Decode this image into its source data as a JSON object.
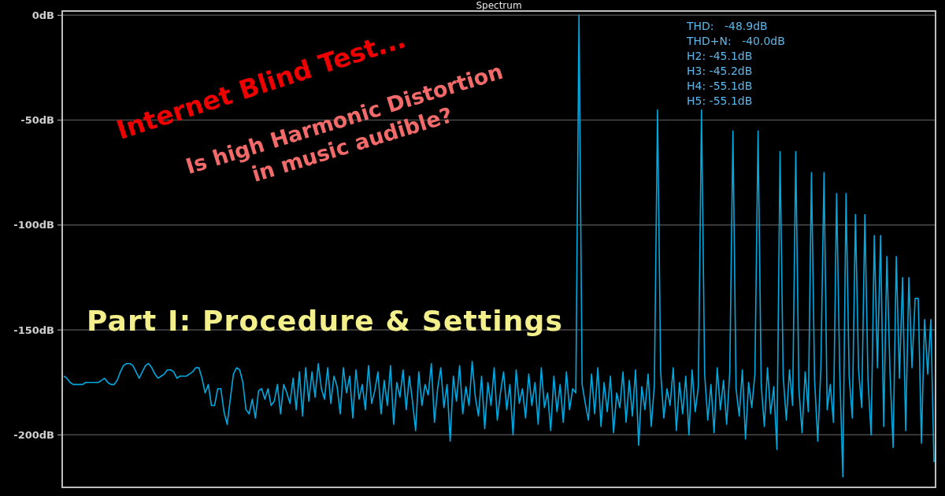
{
  "chart_data": {
    "type": "line",
    "title": "Spectrum",
    "categories": [
      null,
      null,
      null,
      null,
      null,
      null,
      null,
      null,
      null,
      null,
      null,
      null,
      null,
      null,
      null,
      null,
      null,
      null,
      null,
      null,
      null,
      null,
      null,
      null,
      null,
      null,
      null,
      null,
      null,
      null,
      null,
      null,
      null,
      null,
      null,
      null,
      null,
      null,
      null,
      null,
      null,
      null,
      null,
      null,
      null,
      null,
      null,
      null,
      null,
      null,
      null,
      null,
      null,
      null,
      null,
      null,
      null,
      null,
      null,
      null,
      null,
      null,
      null,
      null,
      null,
      null,
      null,
      null,
      null,
      null,
      null,
      null,
      null,
      null,
      null,
      null,
      null,
      null,
      null,
      null,
      null,
      null,
      null,
      null,
      null,
      null,
      null,
      null,
      null,
      null,
      null,
      null,
      null,
      null,
      null,
      null,
      null,
      null,
      null,
      null,
      null,
      null,
      null,
      null,
      null,
      null,
      null,
      null,
      null,
      null,
      null,
      null,
      null,
      null,
      null,
      null,
      null,
      null,
      null,
      null,
      null,
      null,
      null,
      null,
      null,
      null,
      null,
      null,
      null,
      null,
      null,
      null,
      null,
      null,
      null,
      null,
      null,
      null,
      null,
      null,
      null,
      null,
      null,
      null,
      null,
      null,
      null,
      null,
      null,
      null,
      null,
      null,
      null,
      null,
      null,
      null,
      null,
      null,
      null,
      null,
      null,
      null,
      null,
      null,
      null,
      null,
      null,
      null,
      null,
      null,
      null,
      null,
      null,
      null,
      null,
      null,
      null,
      null,
      null,
      null,
      null,
      null,
      null,
      null,
      null,
      null,
      null,
      null,
      null,
      null,
      null,
      null,
      null,
      null,
      null,
      null,
      null,
      null,
      null,
      null,
      null,
      null,
      null,
      null,
      null,
      null,
      null,
      null,
      null,
      null,
      null,
      null,
      null,
      null,
      null,
      null,
      null,
      null,
      null,
      null,
      null,
      null,
      null,
      null,
      null,
      null,
      null,
      null,
      null,
      null,
      null,
      null,
      null,
      null,
      null,
      null,
      null,
      null,
      null,
      null,
      null,
      null,
      null,
      null,
      null,
      null,
      null,
      null,
      null,
      null,
      null,
      null,
      null,
      null,
      null,
      null,
      null,
      null,
      null,
      null,
      null,
      null,
      null,
      null,
      null,
      null,
      null,
      null,
      null,
      null,
      null,
      null,
      null,
      null,
      null,
      null,
      null,
      null
    ],
    "series": [
      {
        "color": "#00a8e0",
        "values": [
          -172,
          -173,
          -175,
          -176,
          -176,
          -176,
          -176,
          -175,
          -175,
          -175,
          -175,
          -175,
          -174,
          -173,
          -175,
          -176,
          -176,
          -174,
          -170,
          -167,
          -166,
          -166,
          -167,
          -170,
          -173,
          -170,
          -167,
          -166,
          -168,
          -171,
          -173,
          -172,
          -171,
          -169,
          -169,
          -170,
          -173,
          -172,
          -172,
          -172,
          -171,
          -170,
          -168,
          -168,
          -173,
          -180,
          -176,
          -186,
          -186,
          -178,
          -178,
          -189,
          -195,
          -183,
          -171,
          -168,
          -169,
          -175,
          -188,
          -190,
          -183,
          -192,
          -179,
          -178,
          -183,
          -178,
          -186,
          -184,
          -176,
          -190,
          -176,
          -180,
          -185,
          -173,
          -188,
          -170,
          -191,
          -168,
          -184,
          -170,
          -182,
          -166,
          -178,
          -183,
          -168,
          -185,
          -172,
          -177,
          -190,
          -168,
          -180,
          -172,
          -192,
          -169,
          -183,
          -176,
          -188,
          -167,
          -185,
          -179,
          -170,
          -190,
          -174,
          -186,
          -167,
          -195,
          -175,
          -182,
          -169,
          -188,
          -172,
          -184,
          -198,
          -170,
          -186,
          -176,
          -181,
          -166,
          -194,
          -178,
          -168,
          -187,
          -176,
          -203,
          -172,
          -184,
          -167,
          -190,
          -177,
          -186,
          -165,
          -182,
          -191,
          -172,
          -197,
          -175,
          -186,
          -168,
          -193,
          -180,
          -170,
          -188,
          -176,
          -200,
          -169,
          -185,
          -178,
          -192,
          -171,
          -186,
          -175,
          -195,
          -168,
          -187,
          -180,
          -198,
          -172,
          -189,
          -176,
          -194,
          -170,
          -188,
          -178,
          -180,
          0,
          -176,
          -185,
          -193,
          -171,
          -190,
          -168,
          -196,
          -175,
          -189,
          -172,
          -199,
          -180,
          -187,
          -170,
          -194,
          -174,
          -191,
          -169,
          -205,
          -177,
          -188,
          -171,
          -196,
          -176,
          -45.1,
          -170,
          -192,
          -178,
          -186,
          -168,
          -198,
          -175,
          -190,
          -172,
          -200,
          -169,
          -189,
          -177,
          -45.2,
          -171,
          -193,
          -176,
          -199,
          -168,
          -188,
          -174,
          -195,
          -170,
          -55.1,
          -178,
          -191,
          -169,
          -202,
          -175,
          -187,
          -171,
          -55.1,
          -176,
          -196,
          -168,
          -190,
          -177,
          -207,
          -65,
          -172,
          -193,
          -169,
          -186,
          -65,
          -178,
          -199,
          -170,
          -189,
          -75,
          -174,
          -203,
          -168,
          -75,
          -188,
          -176,
          -194,
          -85,
          -170,
          -220,
          -85,
          -172,
          -192,
          -95,
          -169,
          -187,
          -95,
          -174,
          -200,
          -105,
          -168,
          -105,
          -196,
          -115,
          -170,
          -206,
          -115,
          -173,
          -125,
          -198,
          -125,
          -168,
          -135,
          -135,
          -204,
          -145,
          -171,
          -145,
          -213
        ]
      }
    ],
    "ylim": [
      -225,
      2
    ],
    "yticks": [
      {
        "value": 0,
        "label": "0dB"
      },
      {
        "value": -50,
        "label": "-50dB"
      },
      {
        "value": -100,
        "label": "-100dB"
      },
      {
        "value": -150,
        "label": "-150dB"
      },
      {
        "value": -200,
        "label": "-200dB"
      }
    ],
    "grid": "y",
    "tick_labels": "y",
    "line_style": "solid",
    "annotations": [
      "Internet Blind Test...",
      "Is high Harmonic Distortion in music audible?",
      "Part I: Procedure & Settings",
      "THD:   -48.9dB",
      "THD+N:   -40.0dB",
      "H2: -45.1dB",
      "H3: -45.2dB",
      "H4: -55.1dB",
      "H5: -55.1dB"
    ]
  }
}
